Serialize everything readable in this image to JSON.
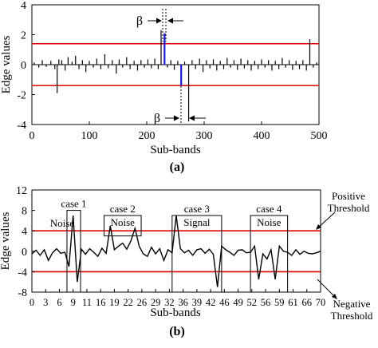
{
  "chart_data": [
    {
      "panel_label": "(a)",
      "type": "line",
      "style": "stem",
      "xlabel": "Sub-bands",
      "ylabel": "Edge values",
      "xlim": [
        0,
        500
      ],
      "ylim": [
        -4,
        4
      ],
      "x_ticks": [
        "0",
        "100",
        "200",
        "300",
        "400",
        "500"
      ],
      "y_ticks": [
        "4",
        "2",
        "0",
        "-2",
        "-4"
      ],
      "thresholds": [
        1.4,
        -1.4
      ],
      "threshold_color": "#e00000",
      "highlight_color": "#1a1ad6",
      "annotation": "β",
      "stems": [
        {
          "x": 4,
          "y": 0.15
        },
        {
          "x": 12,
          "y": -0.2
        },
        {
          "x": 18,
          "y": 0.3
        },
        {
          "x": 25,
          "y": -0.15
        },
        {
          "x": 33,
          "y": 0.25
        },
        {
          "x": 40,
          "y": -0.3
        },
        {
          "x": 44,
          "y": -1.9
        },
        {
          "x": 47,
          "y": 0.35
        },
        {
          "x": 52,
          "y": 0.3
        },
        {
          "x": 58,
          "y": -0.4
        },
        {
          "x": 63,
          "y": 0.5
        },
        {
          "x": 70,
          "y": 0.2
        },
        {
          "x": 76,
          "y": 0.6
        },
        {
          "x": 82,
          "y": -0.3
        },
        {
          "x": 88,
          "y": 0.3
        },
        {
          "x": 94,
          "y": -0.5
        },
        {
          "x": 100,
          "y": 0.25
        },
        {
          "x": 107,
          "y": -0.2
        },
        {
          "x": 113,
          "y": 0.4
        },
        {
          "x": 120,
          "y": -0.3
        },
        {
          "x": 127,
          "y": 0.7
        },
        {
          "x": 133,
          "y": -0.25
        },
        {
          "x": 140,
          "y": 0.3
        },
        {
          "x": 147,
          "y": -0.6
        },
        {
          "x": 152,
          "y": 0.35
        },
        {
          "x": 158,
          "y": -0.2
        },
        {
          "x": 165,
          "y": 0.5
        },
        {
          "x": 171,
          "y": -0.3
        },
        {
          "x": 178,
          "y": 0.25
        },
        {
          "x": 184,
          "y": -0.4
        },
        {
          "x": 190,
          "y": 0.3
        },
        {
          "x": 196,
          "y": -0.2
        },
        {
          "x": 202,
          "y": 0.35
        },
        {
          "x": 208,
          "y": -0.25
        },
        {
          "x": 214,
          "y": 0.4
        },
        {
          "x": 220,
          "y": -0.3
        },
        {
          "x": 225,
          "y": 2.3
        },
        {
          "x": 231,
          "y": 2.1,
          "highlight": true
        },
        {
          "x": 236,
          "y": -0.2
        },
        {
          "x": 242,
          "y": 0.3
        },
        {
          "x": 248,
          "y": -0.35
        },
        {
          "x": 254,
          "y": 0.25
        },
        {
          "x": 260,
          "y": -1.4,
          "highlight": true
        },
        {
          "x": 266,
          "y": 0.2
        },
        {
          "x": 273,
          "y": -3.8
        },
        {
          "x": 279,
          "y": 0.3
        },
        {
          "x": 285,
          "y": -0.3
        },
        {
          "x": 292,
          "y": 0.4
        },
        {
          "x": 298,
          "y": -0.5
        },
        {
          "x": 304,
          "y": 0.3
        },
        {
          "x": 310,
          "y": -0.25
        },
        {
          "x": 316,
          "y": 0.35
        },
        {
          "x": 322,
          "y": -0.4
        },
        {
          "x": 328,
          "y": 0.25
        },
        {
          "x": 334,
          "y": -0.3
        },
        {
          "x": 340,
          "y": 0.45
        },
        {
          "x": 346,
          "y": -0.2
        },
        {
          "x": 352,
          "y": 0.3
        },
        {
          "x": 358,
          "y": -0.35
        },
        {
          "x": 364,
          "y": 0.4
        },
        {
          "x": 370,
          "y": -0.25
        },
        {
          "x": 376,
          "y": 0.3
        },
        {
          "x": 382,
          "y": -0.4
        },
        {
          "x": 388,
          "y": 0.25
        },
        {
          "x": 394,
          "y": -0.3
        },
        {
          "x": 400,
          "y": 0.35
        },
        {
          "x": 406,
          "y": -0.2
        },
        {
          "x": 412,
          "y": 0.3
        },
        {
          "x": 418,
          "y": -0.4
        },
        {
          "x": 424,
          "y": 0.25
        },
        {
          "x": 430,
          "y": -0.3
        },
        {
          "x": 436,
          "y": 0.45
        },
        {
          "x": 442,
          "y": -0.2
        },
        {
          "x": 448,
          "y": 0.3
        },
        {
          "x": 454,
          "y": -0.35
        },
        {
          "x": 460,
          "y": 0.25
        },
        {
          "x": 466,
          "y": -0.3
        },
        {
          "x": 472,
          "y": 0.3
        },
        {
          "x": 478,
          "y": -0.4
        },
        {
          "x": 484,
          "y": 1.7
        },
        {
          "x": 490,
          "y": -0.2
        },
        {
          "x": 496,
          "y": 0.15
        }
      ]
    },
    {
      "panel_label": "(b)",
      "type": "line",
      "xlabel": "Sub-bands",
      "ylabel": "Edge values",
      "xlim": [
        0,
        70
      ],
      "ylim": [
        -8,
        12
      ],
      "x_ticks": [
        "0",
        "3",
        "6",
        "9",
        "11",
        "16",
        "19",
        "22",
        "26",
        "29",
        "32",
        "36",
        "39",
        "42",
        "46",
        "49",
        "52",
        "56",
        "59",
        "61",
        "66",
        "70"
      ],
      "y_ticks": [
        "12",
        "8",
        "4",
        "0",
        "-4",
        "-8"
      ],
      "thresholds": [
        4,
        -4
      ],
      "threshold_color": "#e00000",
      "threshold_labels": {
        "positive": "Positive\nThreshold",
        "negative": "Negative\nThreshold"
      },
      "cases": [
        {
          "title": "case 1",
          "label": "Noise",
          "x_range": [
            8.5,
            11.8
          ],
          "y_range": [
            -8,
            8
          ]
        },
        {
          "title": "case 2",
          "label": "Noise",
          "x_range": [
            17.5,
            26.5
          ],
          "y_range": [
            3,
            7
          ]
        },
        {
          "title": "case 3",
          "label": "Signal",
          "x_range": [
            34,
            46
          ],
          "y_range": [
            -8,
            7
          ]
        },
        {
          "title": "case 4",
          "label": "Noise",
          "x_range": [
            53,
            62
          ],
          "y_range": [
            -8,
            7
          ]
        }
      ],
      "x": [
        0,
        1,
        2,
        3,
        4,
        5,
        6,
        7,
        8,
        9,
        10,
        11,
        12,
        13,
        14,
        15,
        16,
        17,
        18,
        19,
        20,
        21,
        22,
        23,
        24,
        25,
        26,
        27,
        28,
        29,
        30,
        31,
        32,
        33,
        34,
        35,
        36,
        37,
        38,
        39,
        40,
        41,
        42,
        43,
        44,
        45,
        46,
        47,
        48,
        49,
        50,
        51,
        52,
        53,
        54,
        55,
        56,
        57,
        58,
        59,
        60,
        61,
        62,
        63,
        64,
        65,
        66,
        67,
        68,
        69,
        70
      ],
      "y": [
        -0.5,
        0.2,
        -0.8,
        0.3,
        -1.8,
        -0.3,
        0.5,
        -0.4,
        -0.2,
        -3,
        7,
        -6,
        0.4,
        -0.6,
        0.5,
        -0.2,
        -1,
        0.6,
        -0.4,
        5,
        0.3,
        1,
        1.6,
        0.4,
        2,
        4.5,
        1,
        -0.5,
        -1,
        0.8,
        -0.5,
        0.5,
        -1.8,
        0.3,
        -0.3,
        7,
        0.5,
        -0.3,
        0.2,
        -0.8,
        0.3,
        0.5,
        -0.4,
        0.4,
        -0.6,
        -7,
        1,
        0.3,
        -0.2,
        -0.8,
        0.2,
        0.3,
        -0.3,
        -0.2,
        1,
        -5.5,
        -0.5,
        -1.5,
        0.3,
        -5.5,
        1,
        0,
        -0.2,
        -0.8,
        0.3,
        -0.6,
        0,
        -0.4,
        -0.5,
        -0.3,
        0
      ]
    }
  ]
}
